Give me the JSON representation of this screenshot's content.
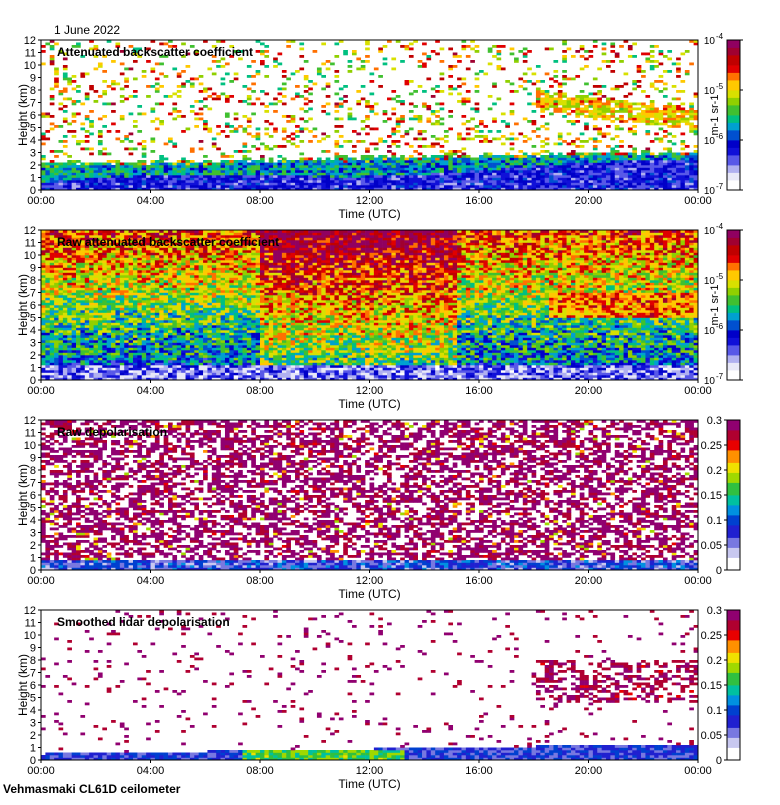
{
  "date": "1 June 2022",
  "footer": "Vehmasmaki CL61D ceilometer",
  "colors": {
    "rainbow": [
      "#ffffff",
      "#e8e8f8",
      "#b0b0f0",
      "#5858e8",
      "#1010d8",
      "#0000c8",
      "#0050d0",
      "#00a0d0",
      "#00c080",
      "#40c030",
      "#90d000",
      "#d8e000",
      "#ffc800",
      "#ff7000",
      "#e00000",
      "#c00000",
      "#a00030",
      "#900060"
    ],
    "depol": [
      "#ffffff",
      "#c8c8f0",
      "#7878e0",
      "#2020d0",
      "#0040d0",
      "#0090e0",
      "#00c0a0",
      "#30c040",
      "#a0d800",
      "#f0e000",
      "#ff9000",
      "#e80000",
      "#b00030",
      "#900070"
    ]
  },
  "chart_data": [
    {
      "type": "heatmap",
      "title": "Attenuated backscatter coefficient",
      "xlabel": "Time (UTC)",
      "ylabel": "Height (km)",
      "x_ticks": [
        "00:00",
        "04:00",
        "08:00",
        "12:00",
        "16:00",
        "20:00",
        "00:00"
      ],
      "y_ticks": [
        "0",
        "1",
        "2",
        "3",
        "4",
        "5",
        "6",
        "7",
        "8",
        "9",
        "10",
        "11",
        "12"
      ],
      "ylim": [
        0,
        12
      ],
      "colorbar": {
        "scale": "log",
        "unit": "m-1 sr-1",
        "tick_base": "10",
        "tick_exponents": [
          "-4",
          "-5",
          "-6",
          "-7"
        ],
        "range": [
          1e-07,
          0.0001
        ]
      },
      "features": "boundary layer 0-2.5 km; elevated aerosol layer 5-8 km after 18:30"
    },
    {
      "type": "heatmap",
      "title": "Raw attenuated backscatter coefficient",
      "xlabel": "Time (UTC)",
      "ylabel": "Height (km)",
      "x_ticks": [
        "00:00",
        "04:00",
        "08:00",
        "12:00",
        "16:00",
        "20:00",
        "00:00"
      ],
      "y_ticks": [
        "0",
        "1",
        "2",
        "3",
        "4",
        "5",
        "6",
        "7",
        "8",
        "9",
        "10",
        "11",
        "12"
      ],
      "ylim": [
        0,
        12
      ],
      "colorbar": {
        "scale": "log",
        "unit": "m-1 sr-1",
        "tick_base": "10",
        "tick_exponents": [
          "-4",
          "-5",
          "-6",
          "-7"
        ],
        "range": [
          1e-07,
          0.0001
        ]
      },
      "features": "noisy signal throughout; high values aloft 08:00-15:00; layer 5-7 km after 18:30"
    },
    {
      "type": "heatmap",
      "title": "Raw depolarisation",
      "xlabel": "Time (UTC)",
      "ylabel": "Height (km)",
      "x_ticks": [
        "00:00",
        "04:00",
        "08:00",
        "12:00",
        "16:00",
        "20:00",
        "00:00"
      ],
      "y_ticks": [
        "0",
        "1",
        "2",
        "3",
        "4",
        "5",
        "6",
        "7",
        "8",
        "9",
        "10",
        "11",
        "12"
      ],
      "ylim": [
        0,
        12
      ],
      "colorbar": {
        "scale": "linear",
        "ticks": [
          "0.3",
          "0.25",
          "0.2",
          "0.15",
          "0.1",
          "0.05",
          "0"
        ],
        "range": [
          0,
          0.3
        ]
      }
    },
    {
      "type": "heatmap",
      "title": "Smoothed lidar depolarisation",
      "xlabel": "Time (UTC)",
      "ylabel": "Height (km)",
      "x_ticks": [
        "00:00",
        "04:00",
        "08:00",
        "12:00",
        "16:00",
        "20:00",
        "00:00"
      ],
      "y_ticks": [
        "0",
        "1",
        "2",
        "3",
        "4",
        "5",
        "6",
        "7",
        "8",
        "9",
        "10",
        "11",
        "12"
      ],
      "ylim": [
        0,
        12
      ],
      "colorbar": {
        "scale": "linear",
        "ticks": [
          "0.3",
          "0.25",
          "0.2",
          "0.15",
          "0.1",
          "0.05",
          "0"
        ],
        "range": [
          0,
          0.3
        ]
      }
    }
  ]
}
